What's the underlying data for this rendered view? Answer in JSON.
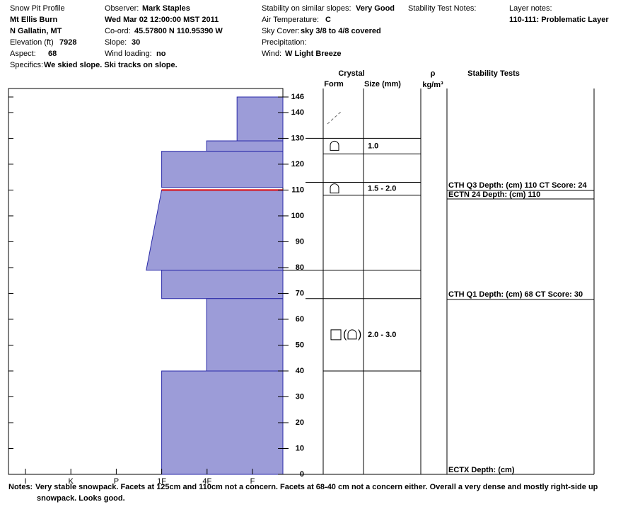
{
  "header": {
    "title": "Snow Pit Profile",
    "location": "Mt Ellis Burn",
    "region": "N Gallatin, MT",
    "elevation_label": "Elevation (ft)",
    "elevation": "7928",
    "aspect_label": "Aspect:",
    "aspect": "68",
    "specifics_label": "Specifics:",
    "specifics": "We skied slope. Ski tracks on slope.",
    "observer_label": "Observer:",
    "observer": "Mark Staples",
    "date": "Wed Mar 02 12:00:00 MST 2011",
    "coord_label": "Co-ord:",
    "coord": "45.57800 N 110.95390 W",
    "slope_label": "Slope:",
    "slope": "30",
    "wind_loading_label": "Wind loading:",
    "wind_loading": "no",
    "stability_label": "Stability on similar slopes:",
    "stability": "Very Good",
    "air_temp_label": "Air Temperature:",
    "air_temp": "C",
    "sky_label": "Sky Cover:",
    "sky": "sky 3/8 to 4/8 covered",
    "precip_label": "Precipitation:",
    "wind_label": "Wind:",
    "wind": "W Light Breeze",
    "stability_notes_label": "Stability Test Notes:",
    "layer_notes_label": "Layer notes:",
    "layer_notes": "110-111: Problematic Layer"
  },
  "columns": {
    "crystal": "Crystal",
    "form": "Form",
    "size": "Size (mm)",
    "rho": "ρ",
    "density_unit": "kg/m³",
    "stability_tests": "Stability Tests"
  },
  "profile": {
    "depth_lim": [
      0,
      146
    ],
    "depth_ticks": [
      0,
      10,
      20,
      30,
      40,
      50,
      60,
      70,
      80,
      90,
      100,
      110,
      120,
      130,
      140,
      146
    ],
    "hardness_labels": [
      "I",
      "K",
      "P",
      "1F",
      "4F",
      "F"
    ],
    "layers": [
      {
        "top": 146,
        "bottom": 129,
        "hardness_top": 4.66,
        "hardness_bottom": 4.66
      },
      {
        "top": 129,
        "bottom": 125,
        "hardness_top": 3.99,
        "hardness_bottom": 3.99
      },
      {
        "top": 125,
        "bottom": 111,
        "hardness_top": 3.0,
        "hardness_bottom": 3.0
      },
      {
        "top": 110,
        "bottom": 79,
        "hardness_top": 3.0,
        "hardness_bottom": 2.66
      },
      {
        "top": 79,
        "bottom": 68,
        "hardness_top": 3.0,
        "hardness_bottom": 3.0
      },
      {
        "top": 68,
        "bottom": 40,
        "hardness_top": 3.99,
        "hardness_bottom": 3.99
      },
      {
        "top": 40,
        "bottom": 0,
        "hardness_top": 3.0,
        "hardness_bottom": 3.0
      }
    ],
    "weak_layer": {
      "depth": 110,
      "hardness": 3.0
    }
  },
  "crystals": [
    {
      "top": 130,
      "bottom": 124,
      "size": "1.0"
    },
    {
      "top": 113,
      "bottom": 108,
      "size": "1.5 - 2.0"
    },
    {
      "top": 68,
      "bottom": 40,
      "size": "2.0 - 3.0"
    }
  ],
  "boundaries": [
    79
  ],
  "tests": [
    "CTH Q3 Depth: (cm) 110 CT Score: 24",
    "ECTN 24  Depth: (cm) 110",
    "CTH Q1 Depth: (cm) 68 CT Score: 30",
    "ECTX  Depth: (cm)"
  ],
  "notes_label": "Notes:",
  "notes": [
    "Very stable snowpack.  Facets at 125cm and 110cm not a concern.  Facets at 68-40 cm not a concern either.  Overall a very dense and mostly right-side up",
    "snowpack.  Looks good."
  ]
}
